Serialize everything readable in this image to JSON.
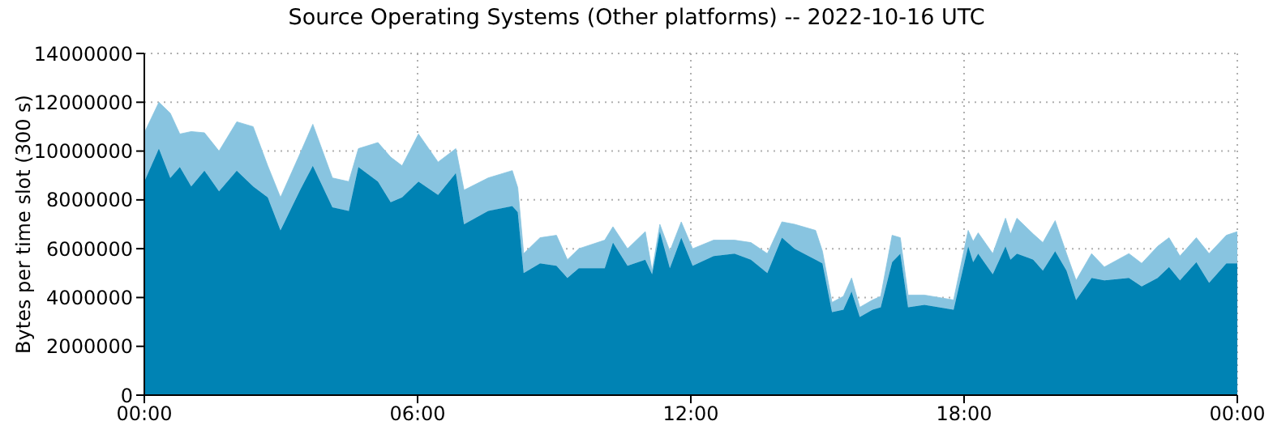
{
  "chart_data": {
    "type": "area",
    "title": "Source Operating Systems (Other platforms) -- 2022-10-16 UTC",
    "ylabel": "Bytes per time slot (300 s)",
    "stacked": true,
    "grid": true,
    "x": [
      0,
      0.32,
      0.57,
      0.78,
      1.03,
      1.32,
      1.64,
      2.03,
      2.39,
      2.71,
      2.99,
      3.42,
      3.7,
      4.13,
      4.49,
      4.7,
      5.13,
      5.41,
      5.66,
      6.02,
      6.45,
      6.84,
      7.02,
      7.55,
      8.08,
      8.2,
      8.33,
      8.69,
      9.05,
      9.29,
      9.54,
      10.11,
      10.29,
      10.61,
      11,
      11.15,
      11.32,
      11.54,
      11.79,
      12.04,
      12.5,
      12.96,
      13.32,
      13.68,
      14,
      14.28,
      14.74,
      14.89,
      15.1,
      15.35,
      15.53,
      15.71,
      15.99,
      16.17,
      16.42,
      16.6,
      16.77,
      17.13,
      17.77,
      18.09,
      18.2,
      18.31,
      18.63,
      18.91,
      19.02,
      19.16,
      19.52,
      19.73,
      20,
      20.25,
      20.46,
      20.8,
      21.08,
      21.62,
      21.9,
      22.25,
      22.5,
      22.74,
      23.1,
      23.38,
      23.76,
      24
    ],
    "series": [
      {
        "color": "#0083b4",
        "values": [
          8750000,
          10100000,
          8900000,
          9350000,
          8550000,
          9200000,
          8350000,
          9200000,
          8550000,
          8100000,
          6750000,
          8400000,
          9400000,
          7700000,
          7550000,
          9350000,
          8750000,
          7900000,
          8100000,
          8750000,
          8200000,
          9100000,
          7000000,
          7550000,
          7750000,
          7500000,
          5000000,
          5400000,
          5300000,
          4800000,
          5200000,
          5200000,
          6250000,
          5300000,
          5550000,
          4950000,
          6700000,
          5200000,
          6450000,
          5300000,
          5700000,
          5800000,
          5550000,
          5000000,
          6450000,
          6000000,
          5550000,
          5400000,
          3400000,
          3500000,
          4250000,
          3200000,
          3500000,
          3600000,
          5450000,
          5800000,
          3600000,
          3700000,
          3500000,
          6100000,
          5450000,
          5800000,
          4950000,
          6100000,
          5550000,
          5800000,
          5550000,
          5100000,
          5900000,
          5100000,
          3900000,
          4800000,
          4700000,
          4800000,
          4450000,
          4800000,
          5250000,
          4700000,
          5450000,
          4600000,
          5400000,
          5400000
        ]
      },
      {
        "color": "#88c4e0",
        "values": [
          2000000,
          1900000,
          2650000,
          1350000,
          2250000,
          1550000,
          1650000,
          2000000,
          2450000,
          1300000,
          1350000,
          1500000,
          1700000,
          1200000,
          1200000,
          750000,
          1600000,
          1850000,
          1300000,
          1950000,
          1350000,
          1000000,
          1400000,
          1350000,
          1450000,
          1000000,
          800000,
          1050000,
          1250000,
          750000,
          800000,
          1150000,
          650000,
          700000,
          1150000,
          150000,
          300000,
          700000,
          650000,
          700000,
          650000,
          550000,
          700000,
          800000,
          650000,
          1000000,
          1200000,
          500000,
          400000,
          550000,
          550000,
          400000,
          400000,
          450000,
          1100000,
          650000,
          500000,
          400000,
          400000,
          650000,
          850000,
          850000,
          850000,
          1150000,
          1050000,
          1450000,
          1050000,
          1150000,
          1250000,
          700000,
          800000,
          1000000,
          550000,
          1000000,
          950000,
          1300000,
          1200000,
          1000000,
          1000000,
          1200000,
          1150000,
          1300000
        ]
      }
    ],
    "xlim": [
      0,
      24
    ],
    "xticks": [
      {
        "value": 0,
        "label": "00:00"
      },
      {
        "value": 6,
        "label": "06:00"
      },
      {
        "value": 12,
        "label": "12:00"
      },
      {
        "value": 18,
        "label": "18:00"
      },
      {
        "value": 24,
        "label": "00:00"
      }
    ],
    "ylim": [
      0,
      14000000
    ],
    "yticks": [
      0,
      2000000,
      4000000,
      6000000,
      8000000,
      10000000,
      12000000,
      14000000
    ]
  }
}
